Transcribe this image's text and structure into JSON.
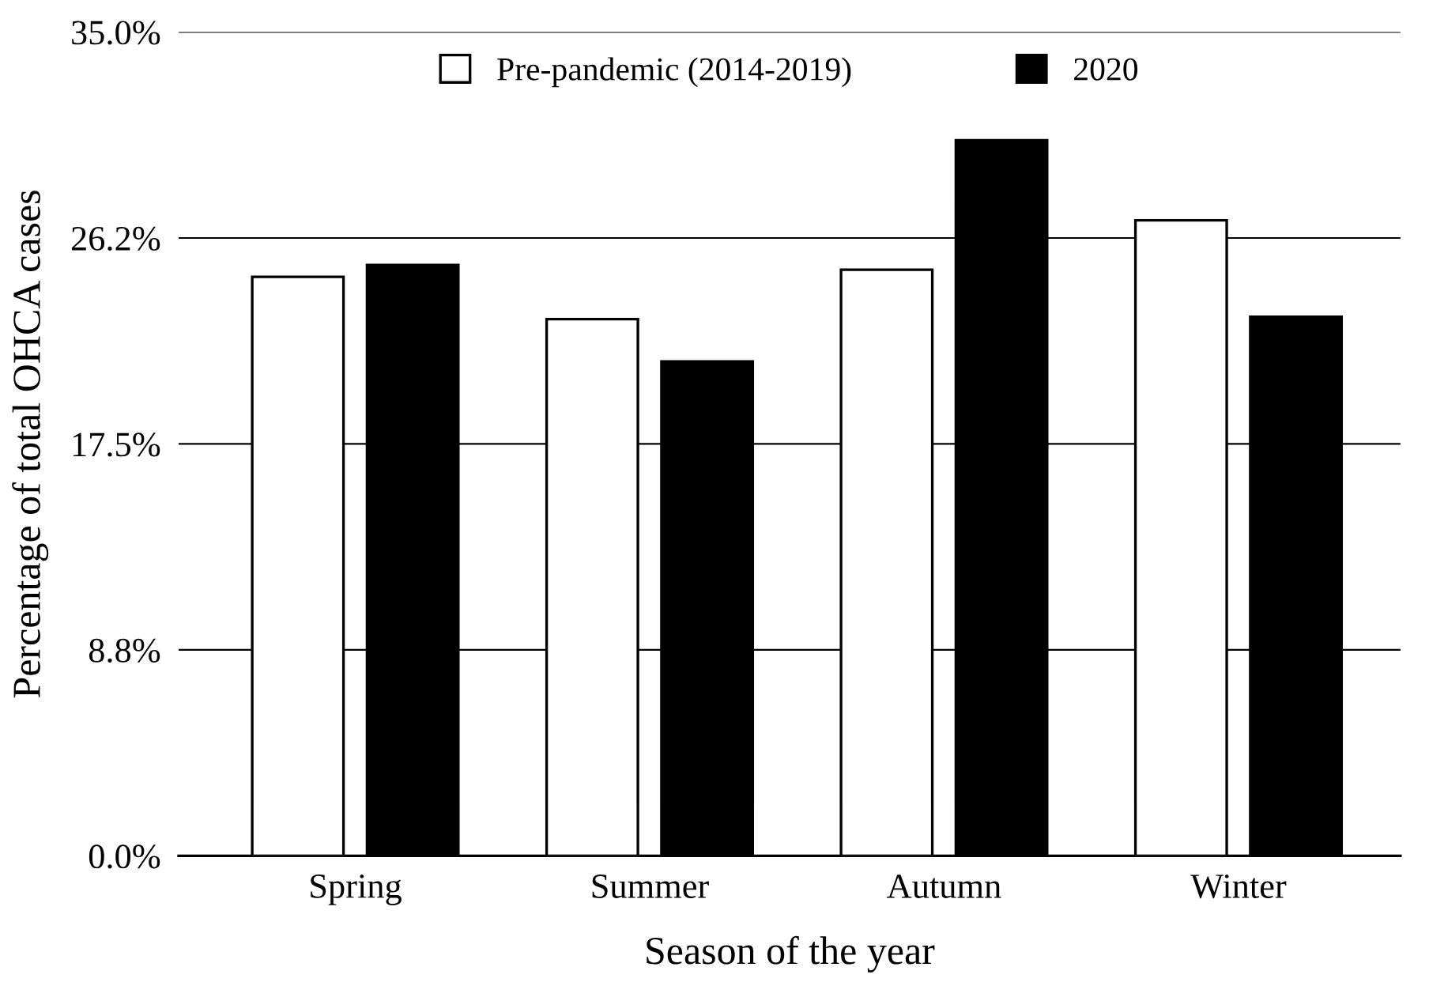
{
  "chart_data": {
    "type": "bar",
    "xlabel": "Season of the year",
    "ylabel": "Percentage of total OHCA cases",
    "categories": [
      "Spring",
      "Summer",
      "Autumn",
      "Winter"
    ],
    "series": [
      {
        "name": "Pre-pandemic (2014-2019)",
        "color": "#ffffff",
        "values": [
          24.6,
          22.8,
          24.9,
          27.0
        ]
      },
      {
        "name": "2020",
        "color": "#000000",
        "values": [
          25.1,
          21.0,
          30.4,
          22.9
        ]
      }
    ],
    "ylim": [
      0,
      35
    ],
    "yticks": [
      {
        "value": 0,
        "label": "0.0%"
      },
      {
        "value": 8.75,
        "label": "8.8%"
      },
      {
        "value": 17.5,
        "label": "17.5%"
      },
      {
        "value": 26.25,
        "label": "26.2%"
      },
      {
        "value": 35,
        "label": "35.0%"
      }
    ],
    "grid": "y",
    "legend": "top"
  }
}
